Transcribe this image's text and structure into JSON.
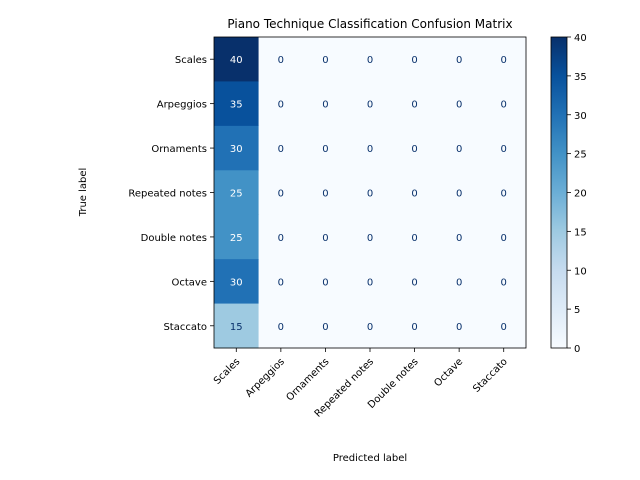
{
  "chart_data": {
    "type": "heatmap",
    "title": "Piano Technique Classification Confusion Matrix",
    "xlabel": "Predicted label",
    "ylabel": "True label",
    "x_categories": [
      "Scales",
      "Arpeggios",
      "Ornaments",
      "Repeated notes",
      "Double notes",
      "Octave",
      "Staccato"
    ],
    "y_categories": [
      "Scales",
      "Arpeggios",
      "Ornaments",
      "Repeated notes",
      "Double notes",
      "Octave",
      "Staccato"
    ],
    "values": [
      [
        40,
        0,
        0,
        0,
        0,
        0,
        0
      ],
      [
        35,
        0,
        0,
        0,
        0,
        0,
        0
      ],
      [
        30,
        0,
        0,
        0,
        0,
        0,
        0
      ],
      [
        25,
        0,
        0,
        0,
        0,
        0,
        0
      ],
      [
        25,
        0,
        0,
        0,
        0,
        0,
        0
      ],
      [
        30,
        0,
        0,
        0,
        0,
        0,
        0
      ],
      [
        15,
        0,
        0,
        0,
        0,
        0,
        0
      ]
    ],
    "colormap": "Blues",
    "vmin": 0,
    "vmax": 40,
    "colorbar": {
      "ticks": [
        0,
        5,
        10,
        15,
        20,
        25,
        30,
        35,
        40
      ]
    },
    "grid": false
  }
}
